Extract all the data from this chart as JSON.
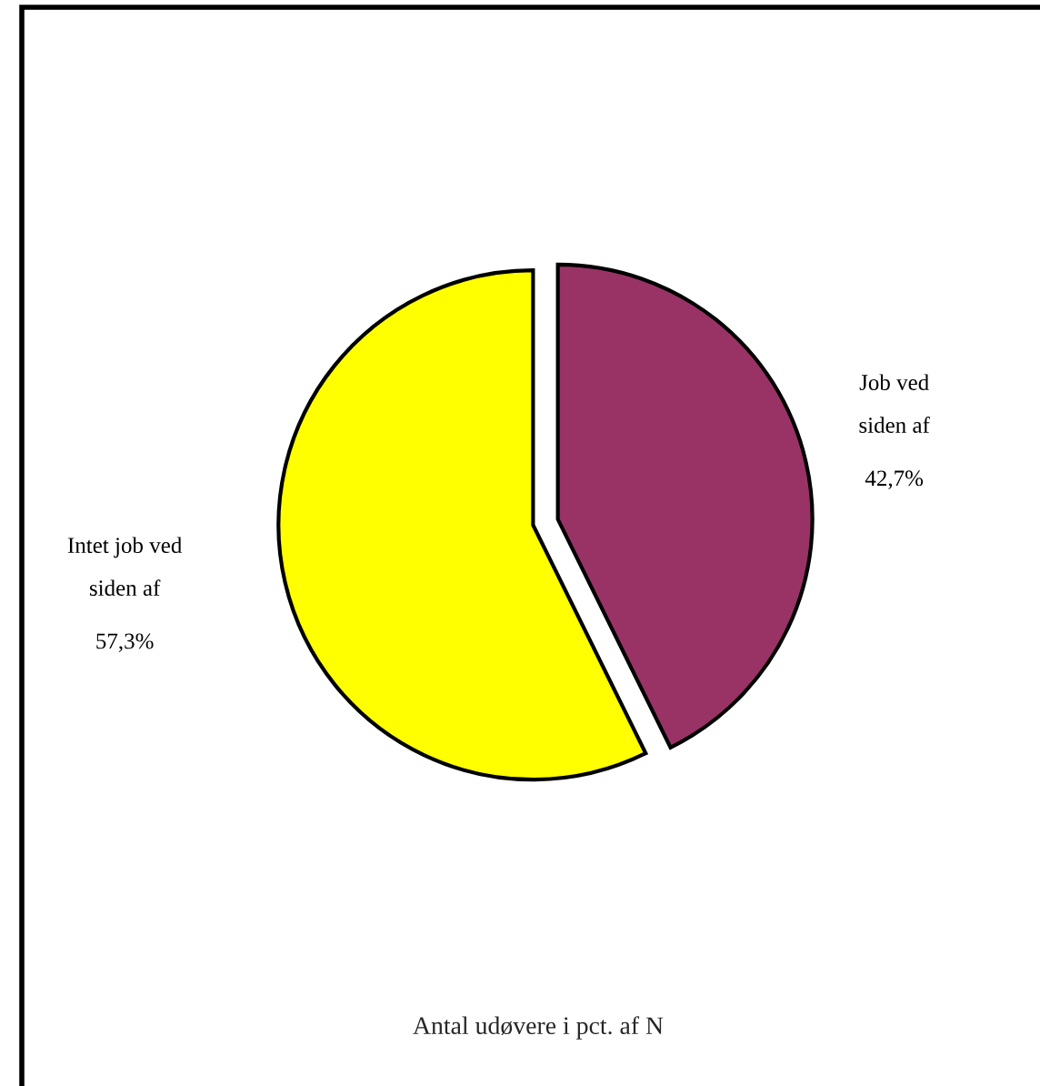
{
  "chart_data": {
    "type": "pie",
    "title": "Antal udøvere i pct. af N",
    "categories": [
      "Job ved\nsiden af",
      "Intet job ved\nsiden af"
    ],
    "values": [
      42.7,
      57.3
    ],
    "colors": [
      "#993366",
      "#ffff00"
    ],
    "value_labels": [
      "42,7%",
      "57,3%"
    ]
  }
}
